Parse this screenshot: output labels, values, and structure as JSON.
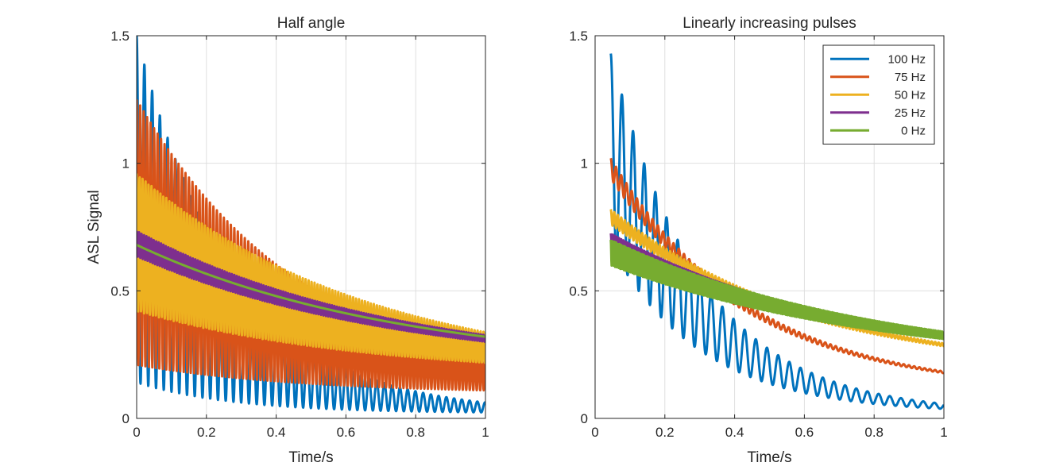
{
  "chart_data": [
    {
      "type": "line",
      "title": "Half angle",
      "xlabel": "Time/s",
      "ylabel": "ASL Signal",
      "xlim": [
        0,
        1
      ],
      "ylim": [
        0,
        1.5
      ],
      "xticks": [
        "0",
        "0.2",
        "0.4",
        "0.6",
        "0.8",
        "1"
      ],
      "yticks": [
        "0",
        "0.5",
        "1",
        "1.5"
      ],
      "grid": true,
      "legend": null,
      "series": [
        {
          "freq_hz": 100,
          "color": "#0072BD",
          "x_start": 0.0,
          "initial": 0.82,
          "end_value": 0.02,
          "decay": 3.55,
          "osc_amplitude": 0.68,
          "osc_period_s": 0.0222
        },
        {
          "freq_hz": 75,
          "color": "#D95319",
          "x_start": 0.0,
          "initial": 0.73,
          "end_value": 0.095,
          "decay": 2.05,
          "osc_amplitude": 0.52,
          "osc_period_s": 0.01
        },
        {
          "freq_hz": 50,
          "color": "#EDB120",
          "x_start": 0.0,
          "initial": 0.69,
          "end_value": 0.16,
          "decay": 1.5,
          "osc_amplitude": 0.27,
          "osc_period_s": 0.0085
        },
        {
          "freq_hz": 25,
          "color": "#7E2F8E",
          "x_start": 0.0,
          "initial": 0.685,
          "end_value": 0.18,
          "decay": 1.33,
          "osc_amplitude": 0.05,
          "osc_period_s": 0.007
        },
        {
          "freq_hz": 0,
          "color": "#77AC30",
          "x_start": 0.0,
          "initial": 0.68,
          "end_value": 0.185,
          "decay": 1.3,
          "osc_amplitude": 0.0,
          "osc_period_s": 0.01
        }
      ]
    },
    {
      "type": "line",
      "title": "Linearly increasing pulses",
      "xlabel": "Time/s",
      "ylabel": "",
      "xlim": [
        0,
        1
      ],
      "ylim": [
        0,
        1.5
      ],
      "xticks": [
        "0",
        "0.2",
        "0.4",
        "0.6",
        "0.8",
        "1"
      ],
      "yticks": [
        "0",
        "0.5",
        "1",
        "1.5"
      ],
      "grid": true,
      "legend": {
        "location": "top-right",
        "entries": [
          "100 Hz",
          "75 Hz",
          "50 Hz",
          "25 Hz",
          "0 Hz"
        ]
      },
      "series": [
        {
          "name": "100 Hz",
          "freq_hz": 100,
          "color": "#0072BD",
          "x_start": 0.045,
          "initial": 1.05,
          "end_value": 0.02,
          "decay": 3.8,
          "osc_amplitude": 0.38,
          "osc_period_s": 0.032
        },
        {
          "name": "75 Hz",
          "freq_hz": 75,
          "color": "#D95319",
          "x_start": 0.045,
          "initial": 0.98,
          "end_value": 0.1,
          "decay": 2.5,
          "osc_amplitude": 0.04,
          "osc_period_s": 0.015
        },
        {
          "name": "50 Hz",
          "freq_hz": 50,
          "color": "#EDB120",
          "x_start": 0.045,
          "initial": 0.79,
          "end_value": 0.165,
          "decay": 1.7,
          "osc_amplitude": 0.03,
          "osc_period_s": 0.01
        },
        {
          "name": "25 Hz",
          "freq_hz": 25,
          "color": "#7E2F8E",
          "x_start": 0.045,
          "initial": 0.7,
          "end_value": 0.185,
          "decay": 1.4,
          "osc_amplitude": 0.025,
          "osc_period_s": 0.006
        },
        {
          "name": "0 Hz",
          "freq_hz": 0,
          "color": "#77AC30",
          "x_start": 0.045,
          "initial": 0.65,
          "end_value": 0.19,
          "decay": 1.28,
          "osc_amplitude": 0.05,
          "osc_period_s": 0.005
        }
      ]
    }
  ]
}
